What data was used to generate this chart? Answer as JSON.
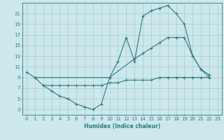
{
  "xlabel": "Humidex (Indice chaleur)",
  "bg_color": "#cce8ed",
  "grid_color": "#aacdd4",
  "line_color": "#2d7b7b",
  "xlim": [
    -0.5,
    23.5
  ],
  "ylim": [
    2,
    23
  ],
  "xticks": [
    0,
    1,
    2,
    3,
    4,
    5,
    6,
    7,
    8,
    9,
    10,
    11,
    12,
    13,
    14,
    15,
    16,
    17,
    18,
    19,
    20,
    21,
    22,
    23
  ],
  "yticks": [
    3,
    5,
    7,
    9,
    11,
    13,
    15,
    17,
    19,
    21
  ],
  "line1_x": [
    0,
    1,
    2,
    3,
    4,
    5,
    6,
    7,
    8,
    9,
    10,
    11,
    12,
    13,
    14,
    15,
    16,
    17,
    18,
    19,
    20,
    21,
    22
  ],
  "line1_y": [
    10,
    9,
    7.5,
    6.5,
    5.5,
    5.0,
    4.0,
    3.5,
    3.0,
    4.0,
    9.0,
    12.0,
    16.5,
    12.0,
    20.5,
    21.5,
    22.0,
    22.5,
    21.0,
    19.0,
    13.0,
    10.5,
    9.5
  ],
  "line2_x": [
    1,
    10,
    13,
    14,
    15,
    16,
    17,
    18,
    19,
    20,
    21,
    22
  ],
  "line2_y": [
    9.0,
    9.0,
    12.5,
    13.5,
    14.5,
    15.5,
    16.5,
    16.5,
    16.5,
    13.0,
    10.5,
    9.0
  ],
  "line3_x": [
    2,
    3,
    4,
    5,
    6,
    7,
    8,
    9,
    10,
    11,
    12,
    13,
    14,
    15,
    16,
    17,
    18,
    19,
    20,
    21,
    22
  ],
  "line3_y": [
    7.5,
    7.5,
    7.5,
    7.5,
    7.5,
    7.5,
    7.5,
    7.5,
    8.0,
    8.0,
    8.5,
    8.5,
    8.5,
    8.5,
    9.0,
    9.0,
    9.0,
    9.0,
    9.0,
    9.0,
    9.0
  ]
}
